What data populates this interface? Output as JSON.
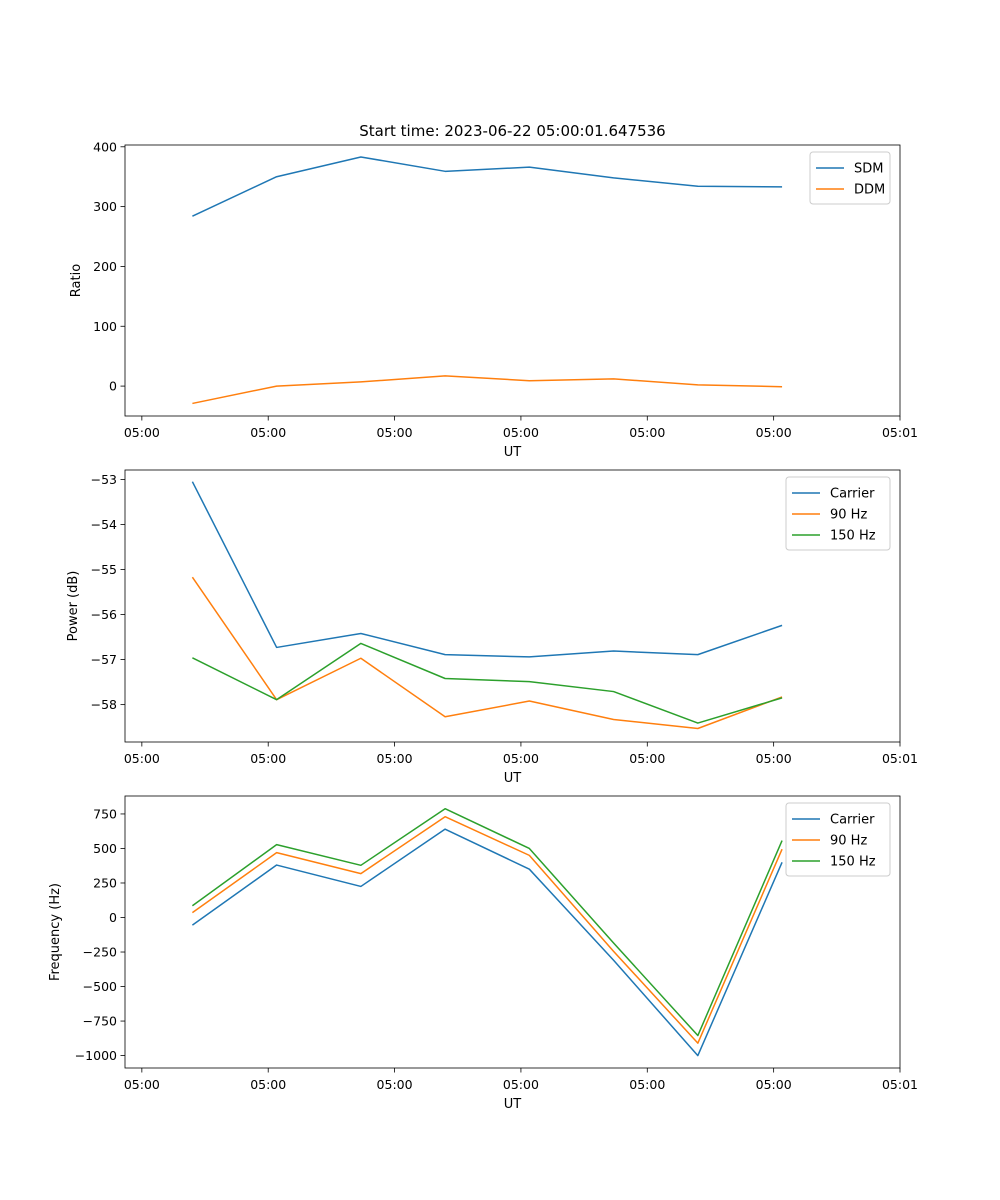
{
  "figure_title": "Start time: 2023-06-22 05:00:01.647536",
  "chart_data": [
    {
      "type": "line",
      "title": "Start time: 2023-06-22 05:00:01.647536",
      "xlabel": "UT",
      "ylabel": "Ratio",
      "x": [
        1,
        2,
        3,
        4,
        5,
        6,
        7,
        8
      ],
      "xlim": [
        0.2,
        9.4
      ],
      "xticks": [
        0.4,
        1.9,
        3.4,
        4.9,
        6.4,
        7.9,
        9.4
      ],
      "xtick_labels": [
        "05:00",
        "05:00",
        "05:00",
        "05:00",
        "05:00",
        "05:00",
        "05:01"
      ],
      "ylim": [
        -50,
        403
      ],
      "yticks": [
        0,
        100,
        200,
        300,
        400
      ],
      "ytick_labels": [
        "0",
        "100",
        "200",
        "300",
        "400"
      ],
      "legend": "top-right",
      "series": [
        {
          "name": "SDM",
          "color": "#1f77b4",
          "values": [
            284,
            350,
            383,
            359,
            366,
            348,
            334,
            333
          ]
        },
        {
          "name": "DDM",
          "color": "#ff7f0e",
          "values": [
            -29,
            0,
            7,
            17,
            9,
            12,
            2,
            -1
          ]
        }
      ]
    },
    {
      "type": "line",
      "xlabel": "UT",
      "ylabel": "Power (dB)",
      "x": [
        1,
        2,
        3,
        4,
        5,
        6,
        7,
        8
      ],
      "xlim": [
        0.2,
        9.4
      ],
      "xticks": [
        0.4,
        1.9,
        3.4,
        4.9,
        6.4,
        7.9,
        9.4
      ],
      "xtick_labels": [
        "05:00",
        "05:00",
        "05:00",
        "05:00",
        "05:00",
        "05:00",
        "05:01"
      ],
      "ylim": [
        -58.83,
        -52.79
      ],
      "yticks": [
        -58,
        -57,
        -56,
        -55,
        -54,
        -53
      ],
      "ytick_labels": [
        "−58",
        "−57",
        "−56",
        "−55",
        "−54",
        "−53"
      ],
      "legend": "top-right",
      "series": [
        {
          "name": "Carrier",
          "color": "#1f77b4",
          "values": [
            -53.05,
            -56.73,
            -56.42,
            -56.89,
            -56.94,
            -56.81,
            -56.89,
            -56.24
          ]
        },
        {
          "name": "90 Hz",
          "color": "#ff7f0e",
          "values": [
            -55.17,
            -57.89,
            -56.97,
            -58.27,
            -57.92,
            -58.33,
            -58.53,
            -57.83
          ]
        },
        {
          "name": "150 Hz",
          "color": "#2ca02c",
          "values": [
            -56.96,
            -57.89,
            -56.64,
            -57.42,
            -57.49,
            -57.71,
            -58.41,
            -57.85
          ]
        }
      ]
    },
    {
      "type": "line",
      "xlabel": "UT",
      "ylabel": "Frequency (Hz)",
      "x": [
        1,
        2,
        3,
        4,
        5,
        6,
        7,
        8
      ],
      "xlim": [
        0.2,
        9.4
      ],
      "xticks": [
        0.4,
        1.9,
        3.4,
        4.9,
        6.4,
        7.9,
        9.4
      ],
      "xtick_labels": [
        "05:00",
        "05:00",
        "05:00",
        "05:00",
        "05:00",
        "05:00",
        "05:01"
      ],
      "ylim": [
        -1090,
        880
      ],
      "yticks": [
        -1000,
        -750,
        -500,
        -250,
        0,
        250,
        500,
        750
      ],
      "ytick_labels": [
        "−1000",
        "−750",
        "−500",
        "−250",
        "0",
        "250",
        "500",
        "750"
      ],
      "legend": "top-right",
      "series": [
        {
          "name": "Carrier",
          "color": "#1f77b4",
          "values": [
            -55,
            380,
            225,
            640,
            350,
            -310,
            -1000,
            400
          ]
        },
        {
          "name": "90 Hz",
          "color": "#ff7f0e",
          "values": [
            35,
            470,
            318,
            730,
            450,
            -245,
            -910,
            495
          ]
        },
        {
          "name": "150 Hz",
          "color": "#2ca02c",
          "values": [
            85,
            528,
            378,
            788,
            500,
            -185,
            -855,
            557
          ]
        }
      ]
    }
  ]
}
